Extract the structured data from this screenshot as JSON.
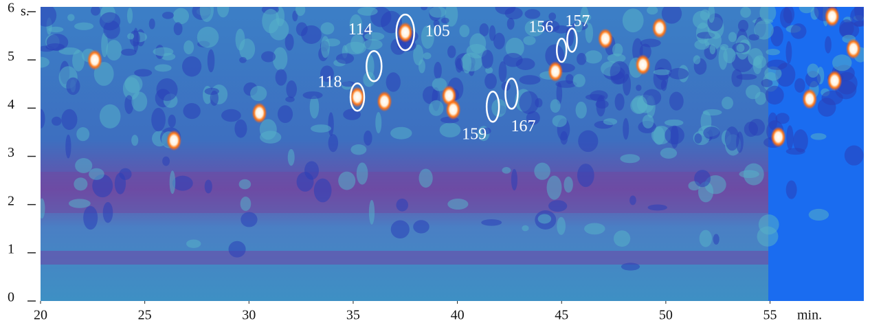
{
  "chart_data": {
    "type": "contour",
    "x_label": "min.",
    "y_label": "s.",
    "xlim": [
      20,
      59.5
    ],
    "ylim": [
      0,
      6.1
    ],
    "xticks": [
      20,
      25,
      30,
      35,
      40,
      45,
      50,
      55
    ],
    "yticks": [
      0,
      1,
      2,
      3,
      4,
      5,
      6
    ],
    "annotations": [
      {
        "text": "118",
        "x": 35.2,
        "y": 4.23
      },
      {
        "text": "114",
        "x": 36.0,
        "y": 4.87
      },
      {
        "text": "105",
        "x": 37.5,
        "y": 5.57
      },
      {
        "text": "159",
        "x": 41.7,
        "y": 4.03
      },
      {
        "text": "167",
        "x": 42.6,
        "y": 4.3
      },
      {
        "text": "156",
        "x": 45.0,
        "y": 5.2
      },
      {
        "text": "157",
        "x": 45.5,
        "y": 5.41
      }
    ],
    "peaks": {
      "x": [
        22.6,
        30.5,
        36.5,
        39.6,
        39.8,
        44.7,
        47.1,
        55.4,
        56.9,
        58.1,
        59.0,
        57.98,
        26.4,
        48.9,
        49.7,
        35.2,
        37.5
      ],
      "y": [
        5.0,
        3.9,
        4.14,
        4.26,
        3.97,
        4.76,
        5.44,
        3.4,
        4.19,
        4.57,
        5.23,
        5.9,
        3.33,
        4.9,
        5.66,
        4.23,
        5.57
      ]
    }
  }
}
